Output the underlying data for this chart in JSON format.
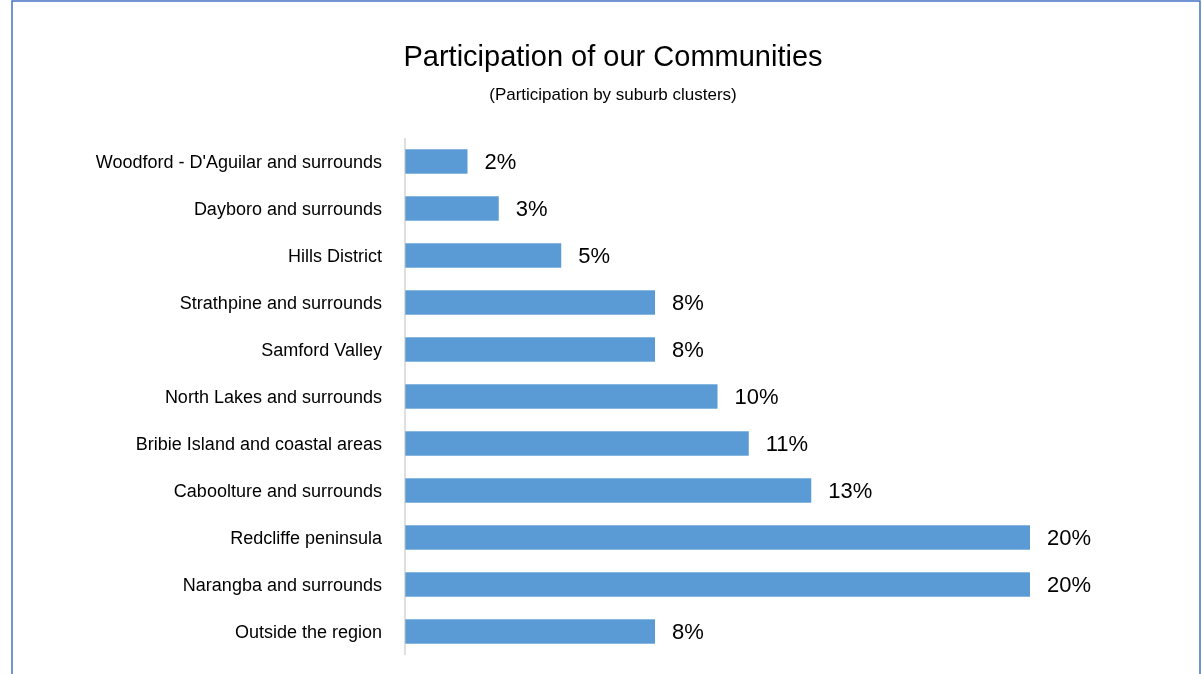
{
  "chart_data": {
    "type": "bar",
    "orientation": "horizontal",
    "title": "Participation of our Communities",
    "subtitle": "(Participation by suburb clusters)",
    "categories": [
      "Woodford - D'Aguilar and surrounds",
      "Dayboro and surrounds",
      "Hills District",
      "Strathpine and surrounds",
      "Samford Valley",
      "North Lakes and surrounds",
      "Bribie Island and coastal areas",
      "Caboolture and surrounds",
      "Redcliffe peninsula",
      "Narangba and surrounds",
      "Outside the region"
    ],
    "values": [
      2,
      3,
      5,
      8,
      8,
      10,
      11,
      13,
      20,
      20,
      8
    ],
    "value_labels": [
      "2%",
      "3%",
      "5%",
      "8%",
      "8%",
      "10%",
      "11%",
      "13%",
      "20%",
      "20%",
      "8%"
    ],
    "color": "#5b9bd5"
  }
}
